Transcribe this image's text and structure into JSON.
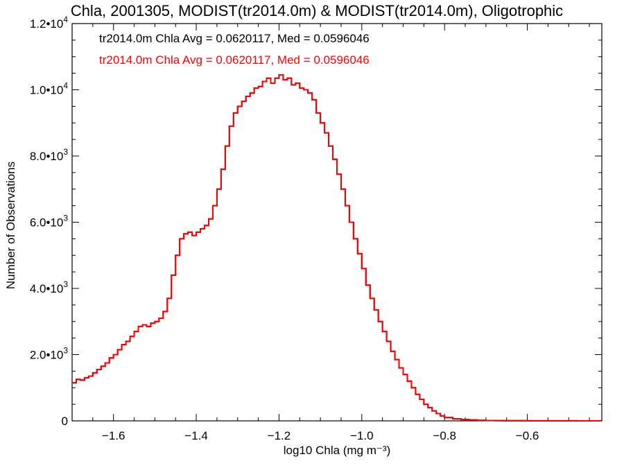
{
  "chart_data": {
    "type": "line",
    "title": "Chla, 2001305, MODIST(tr2014.0m) & MODIST(tr2014.0m), Oligotrophic",
    "xlabel": "log10 Chla (mg m⁻³)",
    "ylabel": "Number of Observations",
    "xlim": [
      -1.7,
      -0.42
    ],
    "ylim": [
      0,
      12000
    ],
    "x_ticks": [
      {
        "value": -1.6,
        "label": "−1.6"
      },
      {
        "value": -1.4,
        "label": "−1.4"
      },
      {
        "value": -1.2,
        "label": "−1.2"
      },
      {
        "value": -1.0,
        "label": "−1.0"
      },
      {
        "value": -0.8,
        "label": "−0.8"
      },
      {
        "value": -0.6,
        "label": "−0.6"
      }
    ],
    "y_ticks": [
      {
        "value": 0,
        "mant": "0",
        "exp": ""
      },
      {
        "value": 2000,
        "mant": "2.0•10",
        "exp": "3"
      },
      {
        "value": 4000,
        "mant": "4.0•10",
        "exp": "3"
      },
      {
        "value": 6000,
        "mant": "6.0•10",
        "exp": "3"
      },
      {
        "value": 8000,
        "mant": "8.0•10",
        "exp": "3"
      },
      {
        "value": 10000,
        "mant": "1.0•10",
        "exp": "4"
      },
      {
        "value": 12000,
        "mant": "1.2•10",
        "exp": "4"
      }
    ],
    "stats": [
      {
        "text": "tr2014.0m Chla Avg = 0.0620117, Med = 0.0596046",
        "color": "#000000"
      },
      {
        "text": "tr2014.0m Chla Avg = 0.0620117, Med = 0.0596046",
        "color": "#ff0000"
      }
    ],
    "series": [
      {
        "color": "#ff0000",
        "style": "step",
        "x": [
          -1.7,
          -1.69,
          -1.68,
          -1.67,
          -1.66,
          -1.65,
          -1.64,
          -1.63,
          -1.62,
          -1.61,
          -1.6,
          -1.59,
          -1.58,
          -1.57,
          -1.56,
          -1.55,
          -1.54,
          -1.53,
          -1.52,
          -1.51,
          -1.5,
          -1.49,
          -1.48,
          -1.47,
          -1.46,
          -1.45,
          -1.44,
          -1.43,
          -1.42,
          -1.41,
          -1.4,
          -1.39,
          -1.38,
          -1.37,
          -1.36,
          -1.35,
          -1.34,
          -1.33,
          -1.32,
          -1.31,
          -1.3,
          -1.29,
          -1.28,
          -1.27,
          -1.26,
          -1.25,
          -1.24,
          -1.23,
          -1.22,
          -1.21,
          -1.2,
          -1.19,
          -1.18,
          -1.17,
          -1.16,
          -1.15,
          -1.14,
          -1.13,
          -1.12,
          -1.11,
          -1.1,
          -1.09,
          -1.08,
          -1.07,
          -1.06,
          -1.05,
          -1.04,
          -1.03,
          -1.02,
          -1.01,
          -1.0,
          -0.99,
          -0.98,
          -0.97,
          -0.96,
          -0.95,
          -0.94,
          -0.93,
          -0.92,
          -0.91,
          -0.9,
          -0.89,
          -0.88,
          -0.87,
          -0.86,
          -0.85,
          -0.84,
          -0.83,
          -0.82,
          -0.81,
          -0.8,
          -0.78,
          -0.76,
          -0.74,
          -0.72,
          -0.7,
          -0.68,
          -0.66,
          -0.64,
          -0.62,
          -0.6,
          -0.58,
          -0.56,
          -0.54,
          -0.52,
          -0.5,
          -0.48,
          -0.46,
          -0.44,
          -0.42
        ],
        "y": [
          1150,
          1250,
          1230,
          1300,
          1350,
          1450,
          1550,
          1650,
          1750,
          1900,
          2000,
          2150,
          2300,
          2400,
          2550,
          2700,
          2850,
          2900,
          2850,
          2950,
          3000,
          3100,
          3300,
          3700,
          4400,
          5000,
          5500,
          5650,
          5700,
          5600,
          5700,
          5800,
          5900,
          6100,
          6500,
          7000,
          7600,
          8300,
          8900,
          9300,
          9500,
          9650,
          9800,
          9900,
          10050,
          10100,
          10250,
          10350,
          10200,
          10350,
          10450,
          10300,
          10350,
          10150,
          10200,
          10050,
          10000,
          9900,
          9700,
          9300,
          9000,
          8700,
          8300,
          7900,
          7450,
          7000,
          6500,
          6000,
          5500,
          5050,
          4600,
          4100,
          3700,
          3350,
          3000,
          2700,
          2400,
          2100,
          1850,
          1600,
          1400,
          1200,
          1000,
          800,
          650,
          500,
          400,
          300,
          220,
          150,
          100,
          60,
          40,
          25,
          15,
          10,
          8,
          6,
          5,
          4,
          3,
          3,
          2,
          2,
          2,
          2,
          1,
          1,
          1,
          1
        ]
      },
      {
        "color": "#000000",
        "style": "step",
        "x": [
          -1.7,
          -1.69,
          -1.68,
          -1.67,
          -1.66,
          -1.65,
          -1.64,
          -1.63,
          -1.62,
          -1.61,
          -1.6,
          -1.59,
          -1.58,
          -1.57,
          -1.56,
          -1.55,
          -1.54,
          -1.53,
          -1.52,
          -1.51,
          -1.5,
          -1.49,
          -1.48,
          -1.47,
          -1.46,
          -1.45,
          -1.44,
          -1.43,
          -1.42,
          -1.41,
          -1.4,
          -1.39,
          -1.38,
          -1.37,
          -1.36,
          -1.35,
          -1.34,
          -1.33,
          -1.32,
          -1.31,
          -1.3,
          -1.29,
          -1.28,
          -1.27,
          -1.26,
          -1.25,
          -1.24,
          -1.23,
          -1.22,
          -1.21,
          -1.2,
          -1.19,
          -1.18,
          -1.17,
          -1.16,
          -1.15,
          -1.14,
          -1.13,
          -1.12,
          -1.11,
          -1.1,
          -1.09,
          -1.08,
          -1.07,
          -1.06,
          -1.05,
          -1.04,
          -1.03,
          -1.02,
          -1.01,
          -1.0,
          -0.99,
          -0.98,
          -0.97,
          -0.96,
          -0.95,
          -0.94,
          -0.93,
          -0.92,
          -0.91,
          -0.9,
          -0.89,
          -0.88,
          -0.87,
          -0.86,
          -0.85,
          -0.84,
          -0.83,
          -0.82,
          -0.81,
          -0.8,
          -0.78,
          -0.76,
          -0.74,
          -0.72,
          -0.7,
          -0.68,
          -0.66,
          -0.64,
          -0.62,
          -0.6,
          -0.58,
          -0.56,
          -0.54,
          -0.52,
          -0.5,
          -0.48,
          -0.46,
          -0.44,
          -0.42
        ],
        "y": [
          1150,
          1250,
          1230,
          1300,
          1350,
          1450,
          1550,
          1650,
          1750,
          1900,
          2000,
          2150,
          2300,
          2400,
          2550,
          2700,
          2850,
          2900,
          2850,
          2950,
          3000,
          3100,
          3300,
          3700,
          4400,
          5000,
          5500,
          5650,
          5700,
          5600,
          5700,
          5800,
          5900,
          6100,
          6500,
          7000,
          7600,
          8300,
          8900,
          9300,
          9500,
          9650,
          9800,
          9900,
          10050,
          10100,
          10250,
          10350,
          10200,
          10350,
          10450,
          10300,
          10350,
          10150,
          10200,
          10050,
          10000,
          9900,
          9700,
          9300,
          9000,
          8700,
          8300,
          7900,
          7450,
          7000,
          6500,
          6000,
          5500,
          5050,
          4600,
          4100,
          3700,
          3350,
          3000,
          2700,
          2400,
          2100,
          1850,
          1600,
          1400,
          1200,
          1000,
          800,
          650,
          500,
          400,
          300,
          220,
          150,
          100,
          60,
          40,
          25,
          15,
          10,
          8,
          6,
          5,
          4,
          3,
          3,
          2,
          2,
          2,
          2,
          1,
          1,
          1,
          1
        ]
      }
    ]
  }
}
